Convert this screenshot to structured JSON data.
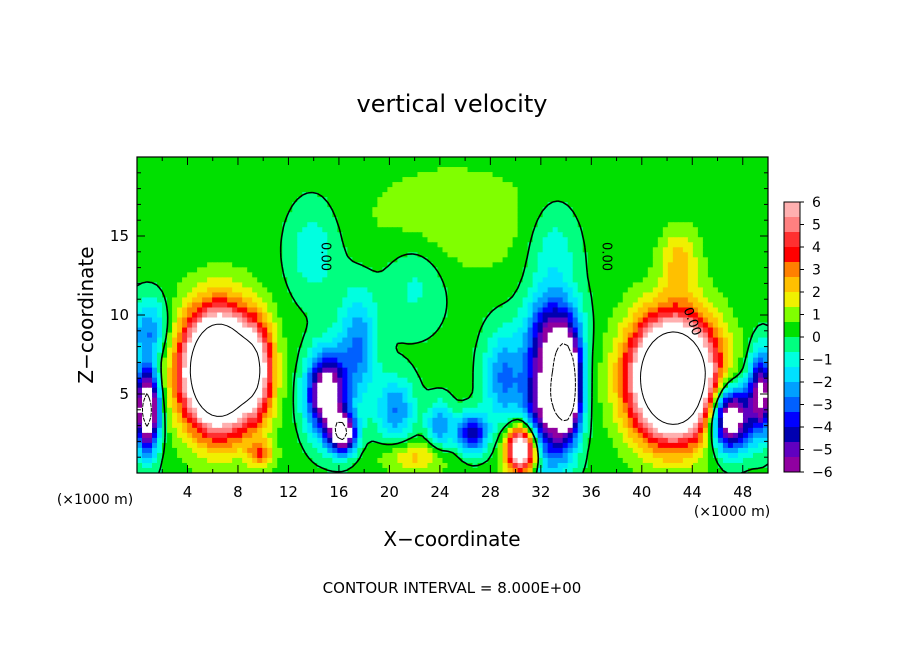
{
  "chart_data": {
    "type": "heatmap",
    "title": "vertical velocity",
    "xlabel": "X−coordinate",
    "ylabel": "Z−coordinate",
    "x_unit_left": "(×1000 m)",
    "x_unit_right": "(×1000 m)",
    "footer": "CONTOUR INTERVAL = 8.000E+00",
    "xlim": [
      0,
      50
    ],
    "ylim": [
      0,
      20
    ],
    "x_ticks": [
      4,
      8,
      12,
      16,
      20,
      24,
      28,
      32,
      36,
      40,
      44,
      48
    ],
    "y_ticks": [
      5,
      10,
      15
    ],
    "contour_label": "0.00",
    "colorbar": {
      "range": [
        -6,
        6
      ],
      "ticks": [
        "6",
        "5",
        "4",
        "3",
        "2",
        "1",
        "0",
        "−1",
        "−2",
        "−3",
        "−4",
        "−5",
        "−6"
      ],
      "colors": [
        "#ffb0b0",
        "#ff8080",
        "#ff3030",
        "#ff0000",
        "#ff8000",
        "#ffc000",
        "#f0f000",
        "#80ff00",
        "#00e000",
        "#00ff80",
        "#00ffe0",
        "#00e0ff",
        "#00a0ff",
        "#0060ff",
        "#0000ff",
        "#0000b0",
        "#6000c0",
        "#9000a0"
      ]
    },
    "features": [
      {
        "x": 6.5,
        "z": 6.5,
        "sx": 2.8,
        "sz": 3.6,
        "amp": 15
      },
      {
        "x": 9.5,
        "z": 6.5,
        "sx": 1.2,
        "sz": 3.0,
        "amp": 4
      },
      {
        "x": 9.8,
        "z": 1.2,
        "sx": 1.0,
        "sz": 0.8,
        "amp": 3
      },
      {
        "x": 42.5,
        "z": 6.0,
        "sx": 3.2,
        "sz": 3.6,
        "amp": 15
      },
      {
        "x": 43.0,
        "z": 13.5,
        "sx": 1.5,
        "sz": 2.0,
        "amp": 2
      },
      {
        "x": 30.5,
        "z": 1.5,
        "sx": 1.2,
        "sz": 1.5,
        "amp": 9
      },
      {
        "x": 22.0,
        "z": 1.0,
        "sx": 2.5,
        "sz": 1.0,
        "amp": 2
      },
      {
        "x": 25.0,
        "z": 16.0,
        "sx": 7.0,
        "sz": 3.5,
        "amp": 1
      },
      {
        "x": 0.8,
        "z": 4.0,
        "sx": 0.9,
        "sz": 2.5,
        "amp": -10
      },
      {
        "x": 1.0,
        "z": 9.0,
        "sx": 1.5,
        "sz": 2.0,
        "amp": -3
      },
      {
        "x": 15.0,
        "z": 5.0,
        "sx": 1.5,
        "sz": 2.5,
        "amp": -8
      },
      {
        "x": 16.3,
        "z": 2.5,
        "sx": 1.0,
        "sz": 1.2,
        "amp": -8
      },
      {
        "x": 17.5,
        "z": 8.0,
        "sx": 1.5,
        "sz": 3.5,
        "amp": -3
      },
      {
        "x": 20.5,
        "z": 4.0,
        "sx": 1.5,
        "sz": 2.0,
        "amp": -3
      },
      {
        "x": 24.0,
        "z": 3.0,
        "sx": 1.0,
        "sz": 1.5,
        "amp": -3
      },
      {
        "x": 26.5,
        "z": 2.5,
        "sx": 1.2,
        "sz": 1.2,
        "amp": -5
      },
      {
        "x": 29.0,
        "z": 6.0,
        "sx": 1.5,
        "sz": 3.0,
        "amp": -3
      },
      {
        "x": 32.5,
        "z": 4.5,
        "sx": 1.8,
        "sz": 4.0,
        "amp": -7
      },
      {
        "x": 34.2,
        "z": 5.5,
        "sx": 1.0,
        "sz": 3.0,
        "amp": -9
      },
      {
        "x": 33.0,
        "z": 9.0,
        "sx": 2.0,
        "sz": 2.5,
        "amp": -4
      },
      {
        "x": 47.0,
        "z": 3.5,
        "sx": 1.5,
        "sz": 2.0,
        "amp": -9
      },
      {
        "x": 49.5,
        "z": 5.0,
        "sx": 1.0,
        "sz": 2.5,
        "amp": -7
      },
      {
        "x": 14.0,
        "z": 14.0,
        "sx": 2.0,
        "sz": 3.0,
        "amp": -1.5
      },
      {
        "x": 33.0,
        "z": 14.0,
        "sx": 2.0,
        "sz": 3.0,
        "amp": -1.5
      },
      {
        "x": 22.0,
        "z": 12.0,
        "sx": 2.5,
        "sz": 3.0,
        "amp": -1.2
      }
    ]
  }
}
